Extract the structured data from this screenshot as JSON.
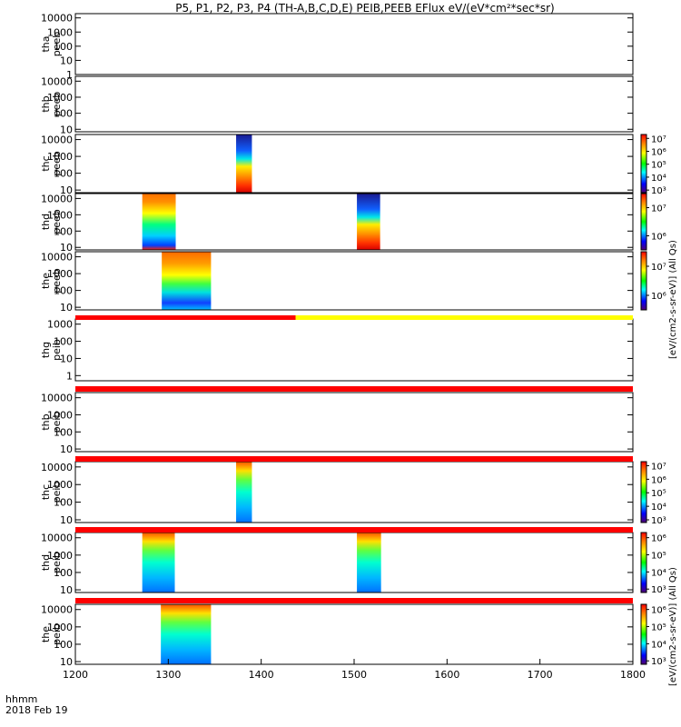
{
  "chart_data": {
    "type": "heatmap",
    "title": "P5, P1, P2, P3, P4 (TH-A,B,C,D,E) PEIB,PEEB EFlux eV/(eV*cm²*sec*sr)",
    "x_range": [
      1200,
      1800
    ],
    "x_ticks": [
      "1200",
      "1300",
      "1400",
      "1500",
      "1600",
      "1700",
      "1800"
    ],
    "x_axis_label": "hhmm",
    "date_label": "2018 Feb 19",
    "panels": [
      {
        "line1": "tha",
        "line2": "peeb",
        "y_ticks": [
          "10000",
          "1000",
          "100",
          "10",
          "1"
        ],
        "y_range": [
          1,
          20000
        ],
        "blocks": []
      },
      {
        "line1": "thb",
        "line2": "peeb",
        "y_ticks": [
          "10000",
          "1000",
          "100",
          "10"
        ],
        "y_range": [
          7,
          20000
        ],
        "blocks": []
      },
      {
        "line1": "thc",
        "line2": "peeb",
        "y_ticks": [
          "10000",
          "1000",
          "100",
          "10"
        ],
        "y_range": [
          7,
          20000
        ],
        "blocks": [
          {
            "x0": 1373,
            "x1": 1390,
            "profile": "hot"
          }
        ]
      },
      {
        "line1": "thd",
        "line2": "peeb",
        "y_ticks": [
          "10000",
          "1000",
          "100",
          "10"
        ],
        "y_range": [
          7,
          20000
        ],
        "blocks": [
          {
            "x0": 1272,
            "x1": 1308,
            "profile": "mixed"
          },
          {
            "x0": 1503,
            "x1": 1528,
            "profile": "hot"
          }
        ]
      },
      {
        "line1": "the",
        "line2": "peeb",
        "y_ticks": [
          "10000",
          "1000",
          "100",
          "10"
        ],
        "y_range": [
          7,
          20000
        ],
        "blocks": [
          {
            "x0": 1293,
            "x1": 1346,
            "profile": "warm"
          }
        ]
      },
      {
        "line1": "thg",
        "line2": "peib",
        "y_ticks": [
          "1000",
          "100",
          "10",
          "1"
        ],
        "y_range": [
          0.5,
          2000
        ],
        "blocks": []
      },
      {
        "line1": "thb",
        "line2": "peib",
        "y_ticks": [
          "10000",
          "1000",
          "100",
          "10"
        ],
        "y_range": [
          7,
          20000
        ],
        "blocks": []
      },
      {
        "line1": "thc",
        "line2": "peib",
        "y_ticks": [
          "10000",
          "1000",
          "100",
          "10"
        ],
        "y_range": [
          7,
          20000
        ],
        "blocks": [
          {
            "x0": 1373,
            "x1": 1390,
            "profile": "cool"
          }
        ]
      },
      {
        "line1": "thd",
        "line2": "peib",
        "y_ticks": [
          "10000",
          "1000",
          "100",
          "10"
        ],
        "y_range": [
          7,
          20000
        ],
        "blocks": [
          {
            "x0": 1272,
            "x1": 1307,
            "profile": "cool"
          },
          {
            "x0": 1503,
            "x1": 1529,
            "profile": "cool"
          }
        ]
      },
      {
        "line1": "the",
        "line2": "peib",
        "y_ticks": [
          "10000",
          "1000",
          "100",
          "10"
        ],
        "y_range": [
          7,
          20000
        ],
        "blocks": [
          {
            "x0": 1292,
            "x1": 1346,
            "profile": "cool"
          }
        ]
      }
    ],
    "flag_bars": [
      {
        "after_panel": 5,
        "segments": [
          {
            "x0": 1200,
            "x1": 1437,
            "color": "#ff0000"
          },
          {
            "x0": 1437,
            "x1": 1800,
            "color": "#ffff00"
          }
        ]
      },
      {
        "after_panel": 6,
        "segments": [
          {
            "x0": 1200,
            "x1": 1800,
            "color": "#ff0000"
          }
        ]
      },
      {
        "after_panel": 7,
        "segments": [
          {
            "x0": 1200,
            "x1": 1800,
            "color": "#ff0000"
          }
        ]
      },
      {
        "after_panel": 8,
        "segments": [
          {
            "x0": 1200,
            "x1": 1800,
            "color": "#ff0000"
          }
        ]
      },
      {
        "after_panel": 9,
        "segments": [
          {
            "x0": 1200,
            "x1": 1800,
            "color": "#ff0000"
          }
        ]
      }
    ],
    "colorbars": [
      {
        "panel": 3,
        "ticks": [
          [
            "10⁷",
            7
          ],
          [
            "10⁶",
            6
          ],
          [
            "10⁵",
            5
          ],
          [
            "10⁴",
            4
          ],
          [
            "10³",
            3
          ]
        ],
        "range": [
          2.8,
          7.3
        ]
      },
      {
        "panel": 4,
        "ticks": [
          [
            "10⁷",
            7
          ],
          [
            "10⁶",
            6
          ]
        ],
        "range": [
          5.5,
          7.5
        ]
      },
      {
        "panel": 5,
        "ticks": [
          [
            "10⁷",
            7
          ],
          [
            "10⁶",
            6
          ]
        ],
        "range": [
          5.5,
          7.5
        ]
      },
      {
        "panel": 8,
        "ticks": [
          [
            "10⁷",
            7
          ],
          [
            "10⁶",
            6
          ],
          [
            "10⁵",
            5
          ],
          [
            "10⁴",
            4
          ],
          [
            "10³",
            3
          ]
        ],
        "range": [
          2.8,
          7.3
        ]
      },
      {
        "panel": 9,
        "ticks": [
          [
            "10⁶",
            6
          ],
          [
            "10⁵",
            5
          ],
          [
            "10⁴",
            4
          ],
          [
            "10³",
            3
          ]
        ],
        "range": [
          2.8,
          6.3
        ]
      },
      {
        "panel": 10,
        "ticks": [
          [
            "10⁶",
            6
          ],
          [
            "10⁵",
            5
          ],
          [
            "10⁴",
            4
          ],
          [
            "10³",
            3
          ]
        ],
        "range": [
          2.8,
          6.3
        ]
      }
    ],
    "colorbar_labels": [
      "[eV/(cm2-s-sr-eV)] (All Qs)",
      "[eV/(cm2-s-sr-eV)] (All Qs)"
    ]
  }
}
